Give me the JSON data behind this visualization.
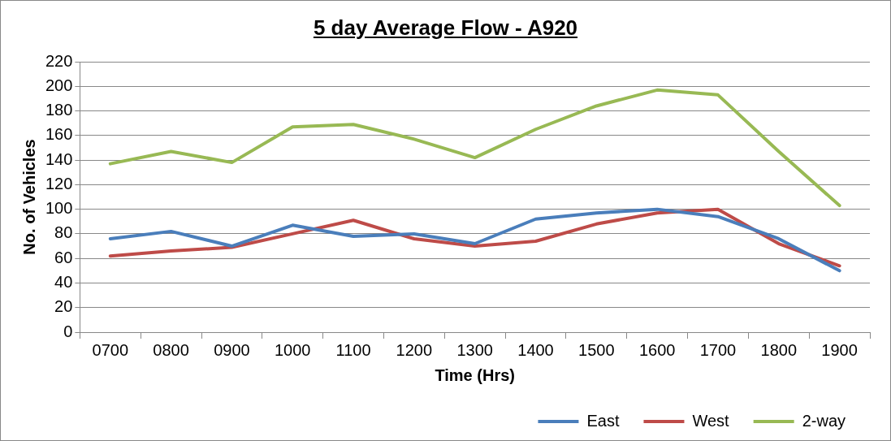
{
  "chart_data": {
    "type": "line",
    "title": "5 day Average Flow - A920",
    "xlabel": "Time (Hrs)",
    "ylabel": "No. of Vehicles",
    "categories": [
      "0700",
      "0800",
      "0900",
      "1000",
      "1100",
      "1200",
      "1300",
      "1400",
      "1500",
      "1600",
      "1700",
      "1800",
      "1900"
    ],
    "series": [
      {
        "name": "East",
        "color": "#4a7ebb",
        "values": [
          76,
          82,
          70,
          87,
          78,
          80,
          72,
          92,
          97,
          100,
          94,
          76,
          50
        ]
      },
      {
        "name": "West",
        "color": "#be4b48",
        "values": [
          62,
          66,
          69,
          80,
          91,
          76,
          70,
          74,
          88,
          97,
          100,
          72,
          54
        ]
      },
      {
        "name": "2-way",
        "color": "#98b954",
        "values": [
          137,
          147,
          138,
          167,
          169,
          157,
          142,
          165,
          184,
          197,
          193,
          147,
          103
        ]
      }
    ],
    "ylim": [
      0,
      220
    ],
    "yticks": [
      0,
      20,
      40,
      60,
      80,
      100,
      120,
      140,
      160,
      180,
      200,
      220
    ],
    "grid": "y",
    "legend": "bottom right",
    "marker": "none",
    "line_style": "solid"
  }
}
